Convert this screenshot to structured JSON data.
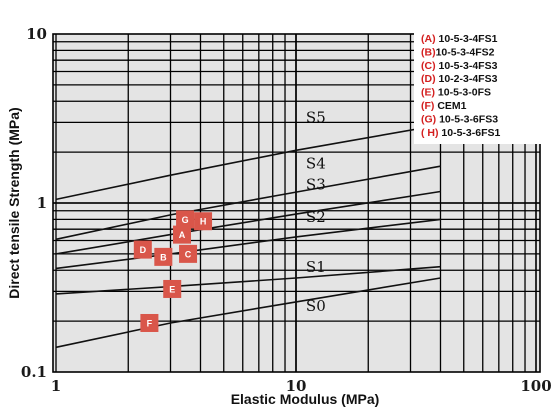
{
  "chart_data": {
    "type": "scatter",
    "x_scale": "log",
    "y_scale": "log",
    "xlim": [
      1,
      100
    ],
    "ylim": [
      0.1,
      10
    ],
    "xlabel": "Elastic Modulus (MPa)",
    "ylabel": "Direct tensile Strength (MPa)",
    "x_ticks": [
      "1",
      "10",
      "100"
    ],
    "y_ticks": [
      "10",
      "1",
      "0.1"
    ],
    "grid": true,
    "legend_position": "top-right",
    "marker_color": "#d9564a",
    "legend_key_color": "#d42020",
    "zones": [
      {
        "label": "S5",
        "label_at": [
          11,
          3.0
        ],
        "curve": [
          [
            1,
            1.05
          ],
          [
            3,
            1.46
          ],
          [
            10,
            2.05
          ],
          [
            40,
            2.9
          ]
        ]
      },
      {
        "label": "S4",
        "label_at": [
          11,
          1.6
        ],
        "curve": [
          [
            1,
            0.61
          ],
          [
            3,
            0.85
          ],
          [
            10,
            1.16
          ],
          [
            40,
            1.65
          ]
        ]
      },
      {
        "label": "S3",
        "label_at": [
          11,
          1.2
        ],
        "curve": [
          [
            1,
            0.5
          ],
          [
            3,
            0.65
          ],
          [
            10,
            0.86
          ],
          [
            40,
            1.17
          ]
        ]
      },
      {
        "label": "S2",
        "label_at": [
          11,
          0.77
        ],
        "curve": [
          [
            1,
            0.41
          ],
          [
            3,
            0.5
          ],
          [
            10,
            0.63
          ],
          [
            40,
            0.8
          ]
        ]
      },
      {
        "label": "S1",
        "label_at": [
          11,
          0.39
        ],
        "curve": [
          [
            1,
            0.29
          ],
          [
            3,
            0.32
          ],
          [
            10,
            0.36
          ],
          [
            40,
            0.42
          ]
        ]
      },
      {
        "label": "S0",
        "label_at": [
          11,
          0.23
        ],
        "curve": [
          [
            1,
            0.14
          ],
          [
            3,
            0.195
          ],
          [
            10,
            0.26
          ],
          [
            40,
            0.36
          ]
        ]
      }
    ],
    "points": [
      {
        "label": "A",
        "x": 3.35,
        "y": 0.65
      },
      {
        "label": "B",
        "x": 2.8,
        "y": 0.48
      },
      {
        "label": "C",
        "x": 3.55,
        "y": 0.5
      },
      {
        "label": "D",
        "x": 2.3,
        "y": 0.53
      },
      {
        "label": "E",
        "x": 3.05,
        "y": 0.31
      },
      {
        "label": "F",
        "x": 2.45,
        "y": 0.195
      },
      {
        "label": "G",
        "x": 3.45,
        "y": 0.8
      },
      {
        "label": "H",
        "x": 4.1,
        "y": 0.78
      }
    ],
    "legend": [
      {
        "key": "(A)",
        "text": " 10-5-3-4FS1"
      },
      {
        "key": "(B)",
        "text": "10-5-3-4FS2"
      },
      {
        "key": "(C)",
        "text": " 10-5-3-4FS3"
      },
      {
        "key": "(D)",
        "text": " 10-2-3-4FS3"
      },
      {
        "key": "(E)",
        "text": " 10-5-3-0FS"
      },
      {
        "key": "(F)",
        "text": "  CEM1"
      },
      {
        "key": "(G)",
        "text": " 10-5-3-6FS3"
      },
      {
        "key": "( H)",
        "text": " 10-5-3-6FS1"
      }
    ]
  }
}
